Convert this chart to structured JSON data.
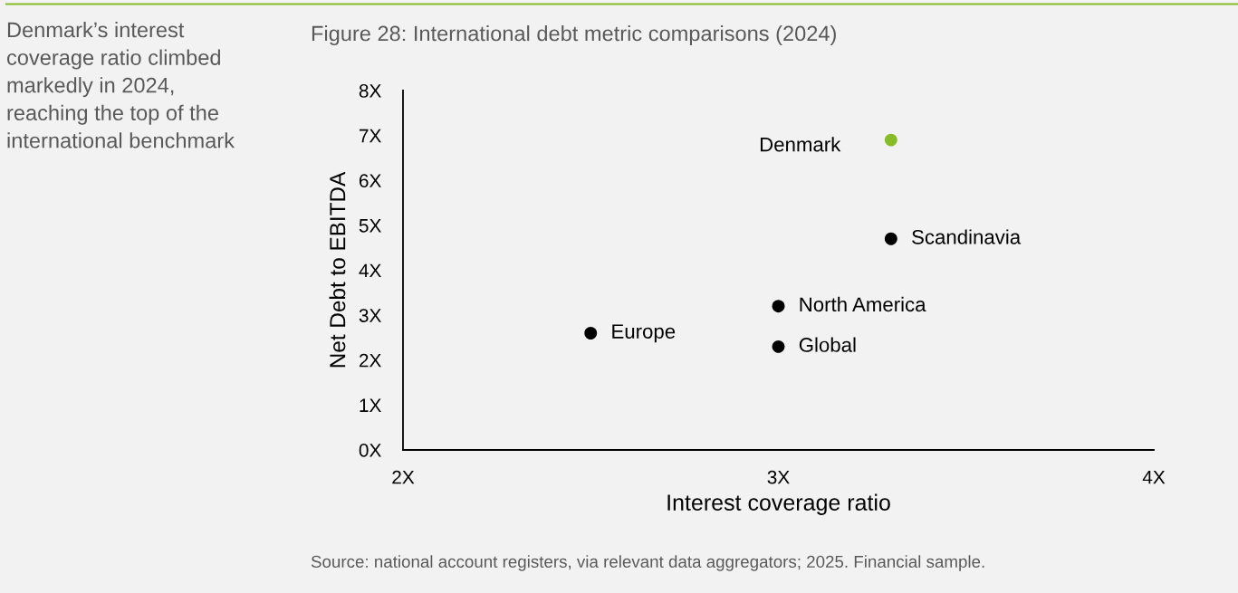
{
  "chart_data": {
    "type": "scatter",
    "title": "Figure 28: International debt metric comparisons (2024)",
    "subtitle": "Denmark’s interest coverage ratio climbed markedly in 2024, reaching the top of the international benchmark",
    "xlabel": "Interest coverage ratio",
    "ylabel": "Net Debt to EBITDA",
    "annotations": [
      "Source: national account registers, via relevant data aggregators; 2025. Financial sample."
    ],
    "xlim": [
      2,
      4
    ],
    "ylim": [
      0,
      8
    ],
    "xticks": [
      {
        "value": 2,
        "label": "2X"
      },
      {
        "value": 3,
        "label": "3X"
      },
      {
        "value": 4,
        "label": "4X"
      }
    ],
    "yticks": [
      {
        "value": 0,
        "label": "0X"
      },
      {
        "value": 1,
        "label": "1X"
      },
      {
        "value": 2,
        "label": "2X"
      },
      {
        "value": 3,
        "label": "3X"
      },
      {
        "value": 4,
        "label": "4X"
      },
      {
        "value": 5,
        "label": "5X"
      },
      {
        "value": 6,
        "label": "6X"
      },
      {
        "value": 7,
        "label": "7X"
      },
      {
        "value": 8,
        "label": "8X"
      }
    ],
    "marker": "circle",
    "series": [
      {
        "name": "Denmark",
        "color": "#86bc25",
        "x": [
          3.3
        ],
        "values": [
          6.9
        ]
      },
      {
        "name": "Scandinavia",
        "color": "#000000",
        "x": [
          3.3
        ],
        "values": [
          4.7
        ]
      },
      {
        "name": "North America",
        "color": "#000000",
        "x": [
          3.0
        ],
        "values": [
          3.2
        ]
      },
      {
        "name": "Europe",
        "color": "#000000",
        "x": [
          2.5
        ],
        "values": [
          2.6
        ]
      },
      {
        "name": "Global",
        "color": "#000000",
        "x": [
          3.0
        ],
        "values": [
          2.3
        ]
      }
    ]
  }
}
